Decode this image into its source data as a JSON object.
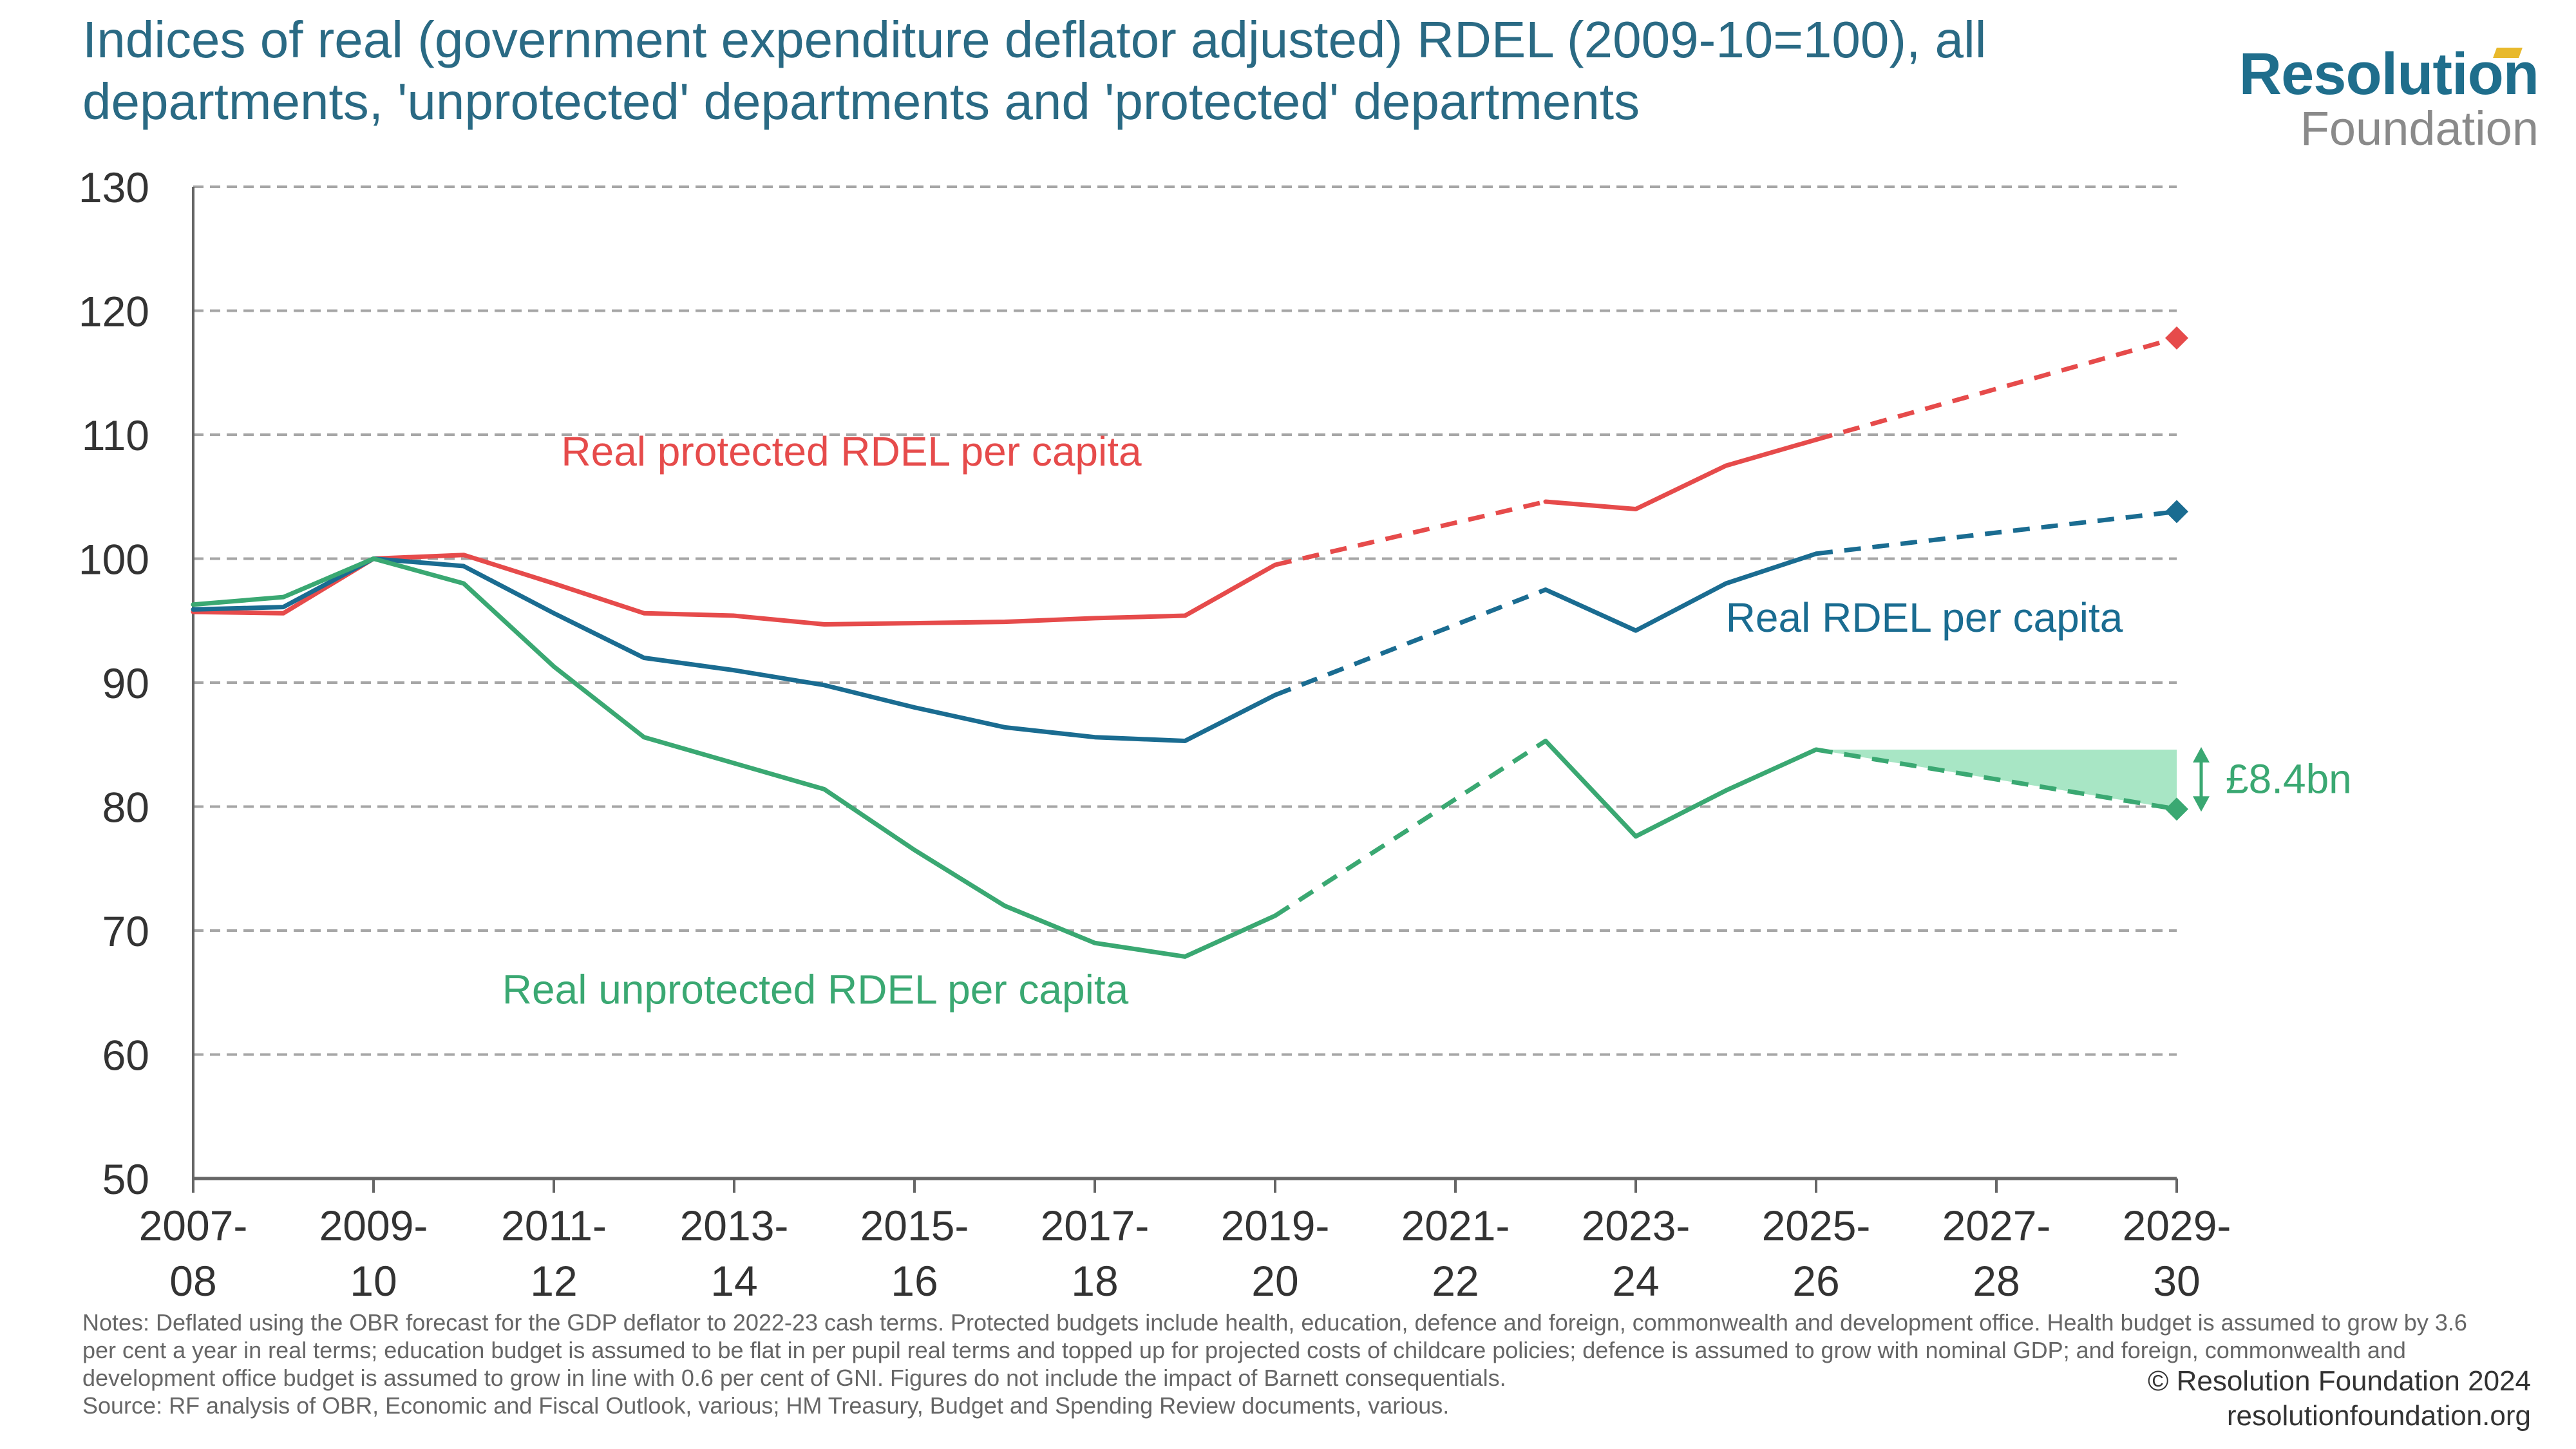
{
  "title": "Indices of real (government expenditure deflator adjusted) RDEL (2009-10=100), all departments, 'unprotected' departments and 'protected' departments",
  "logo": {
    "top": "Resolution",
    "bottom": "Foundation"
  },
  "notes": "Notes: Deflated using the OBR forecast for the GDP deflator to 2022-23 cash terms. Protected budgets include health, education, defence and foreign, commonwealth and development office. Health budget is assumed to grow by 3.6 per cent a year in real terms; education budget is assumed to be flat in per pupil real terms and topped up for projected costs of childcare policies; defence is assumed to grow with nominal GDP; and foreign, commonwealth and development office budget is assumed to grow in line with 0.6 per cent of GNI. Figures do not include the impact of Barnett consequentials.",
  "source": "Source: RF analysis of OBR, Economic and Fiscal Outlook, various; HM Treasury, Budget and Spending Review documents, various.",
  "copyright": "© Resolution Foundation 2024",
  "website": "resolutionfoundation.org",
  "colors": {
    "protected": "#e64b4b",
    "all": "#1a6c91",
    "unprotected": "#3aa872",
    "gap_fill": "#a8e6c5",
    "grid": "#a6a6a6",
    "axis": "#666666"
  },
  "chart_data": {
    "type": "line",
    "ylim": [
      50,
      130
    ],
    "y_ticks": [
      50,
      60,
      70,
      80,
      90,
      100,
      110,
      120,
      130
    ],
    "grid": "horizontal dashed",
    "x": [
      "2007-08",
      "2008-09",
      "2009-10",
      "2010-11",
      "2011-12",
      "2012-13",
      "2013-14",
      "2014-15",
      "2015-16",
      "2016-17",
      "2017-18",
      "2018-19",
      "2019-20",
      "2020-21",
      "2021-22",
      "2022-23",
      "2023-24",
      "2024-25",
      "2025-26",
      "2026-27",
      "2027-28",
      "2028-29",
      "2029-30"
    ],
    "x_tick_labels": [
      {
        "top": "2007-",
        "bottom": "08"
      },
      {
        "top": "2009-",
        "bottom": "10"
      },
      {
        "top": "2011-",
        "bottom": "12"
      },
      {
        "top": "2013-",
        "bottom": "14"
      },
      {
        "top": "2015-",
        "bottom": "16"
      },
      {
        "top": "2017-",
        "bottom": "18"
      },
      {
        "top": "2019-",
        "bottom": "20"
      },
      {
        "top": "2021-",
        "bottom": "22"
      },
      {
        "top": "2023-",
        "bottom": "24"
      },
      {
        "top": "2025-",
        "bottom": "26"
      },
      {
        "top": "2027-",
        "bottom": "28"
      },
      {
        "top": "2029-",
        "bottom": "30"
      }
    ],
    "series": [
      {
        "name": "Real protected RDEL per capita",
        "key": "protected",
        "solid_segments": [
          [
            [
              "2007-08",
              95.7
            ],
            [
              "2008-09",
              95.6
            ],
            [
              "2009-10",
              100.0
            ],
            [
              "2010-11",
              100.3
            ],
            [
              "2011-12",
              98.0
            ],
            [
              "2012-13",
              95.6
            ],
            [
              "2013-14",
              95.4
            ],
            [
              "2014-15",
              94.7
            ],
            [
              "2015-16",
              94.8
            ],
            [
              "2016-17",
              94.9
            ],
            [
              "2017-18",
              95.2
            ],
            [
              "2018-19",
              95.4
            ],
            [
              "2019-20",
              99.5
            ]
          ],
          [
            [
              "2022-23",
              104.6
            ],
            [
              "2023-24",
              104.0
            ],
            [
              "2024-25",
              107.5
            ],
            [
              "2025-26",
              109.6
            ]
          ]
        ],
        "dashed_segments": [
          [
            [
              "2019-20",
              99.5
            ],
            [
              "2022-23",
              104.6
            ]
          ],
          [
            [
              "2025-26",
              109.6
            ],
            [
              "2029-30",
              117.8
            ]
          ]
        ],
        "end_marker": [
          "2029-30",
          117.8
        ]
      },
      {
        "name": "Real RDEL per capita",
        "key": "all",
        "solid_segments": [
          [
            [
              "2007-08",
              95.9
            ],
            [
              "2008-09",
              96.1
            ],
            [
              "2009-10",
              100.0
            ],
            [
              "2010-11",
              99.4
            ],
            [
              "2011-12",
              95.6
            ],
            [
              "2012-13",
              92.0
            ],
            [
              "2013-14",
              91.0
            ],
            [
              "2014-15",
              89.8
            ],
            [
              "2015-16",
              88.0
            ],
            [
              "2016-17",
              86.4
            ],
            [
              "2017-18",
              85.6
            ],
            [
              "2018-19",
              85.3
            ],
            [
              "2019-20",
              89.0
            ]
          ],
          [
            [
              "2022-23",
              97.5
            ],
            [
              "2023-24",
              94.2
            ],
            [
              "2024-25",
              98.0
            ],
            [
              "2025-26",
              100.4
            ]
          ]
        ],
        "dashed_segments": [
          [
            [
              "2019-20",
              89.0
            ],
            [
              "2022-23",
              97.5
            ]
          ],
          [
            [
              "2025-26",
              100.4
            ],
            [
              "2029-30",
              103.8
            ]
          ]
        ],
        "end_marker": [
          "2029-30",
          103.8
        ]
      },
      {
        "name": "Real unprotected RDEL per capita",
        "key": "unprotected",
        "solid_segments": [
          [
            [
              "2007-08",
              96.3
            ],
            [
              "2008-09",
              96.9
            ],
            [
              "2009-10",
              100.0
            ],
            [
              "2010-11",
              98.0
            ],
            [
              "2011-12",
              91.3
            ],
            [
              "2012-13",
              85.6
            ],
            [
              "2013-14",
              83.5
            ],
            [
              "2014-15",
              81.4
            ],
            [
              "2015-16",
              76.5
            ],
            [
              "2016-17",
              72.0
            ],
            [
              "2017-18",
              69.0
            ],
            [
              "2018-19",
              67.9
            ],
            [
              "2019-20",
              71.2
            ]
          ],
          [
            [
              "2022-23",
              85.3
            ],
            [
              "2023-24",
              77.6
            ],
            [
              "2024-25",
              81.3
            ],
            [
              "2025-26",
              84.6
            ]
          ]
        ],
        "dashed_segments": [
          [
            [
              "2019-20",
              71.2
            ],
            [
              "2022-23",
              85.3
            ]
          ],
          [
            [
              "2025-26",
              84.6
            ],
            [
              "2029-30",
              79.8
            ]
          ]
        ],
        "end_marker": [
          "2029-30",
          79.8
        ]
      }
    ],
    "annotations": [
      {
        "text": "Real protected RDEL per capita",
        "series": "protected"
      },
      {
        "text": "Real RDEL per capita",
        "series": "all"
      },
      {
        "text": "Real unprotected RDEL per capita",
        "series": "unprotected"
      },
      {
        "text": "£8.4bn",
        "series": "unprotected",
        "meaning": "gap between flat 2025-26 level (84.6) and 2029-30 projection (79.8)"
      }
    ],
    "gap_band": {
      "from": "2025-26",
      "to": "2029-30",
      "flat_level": 84.6,
      "lower_end": 79.8
    }
  }
}
